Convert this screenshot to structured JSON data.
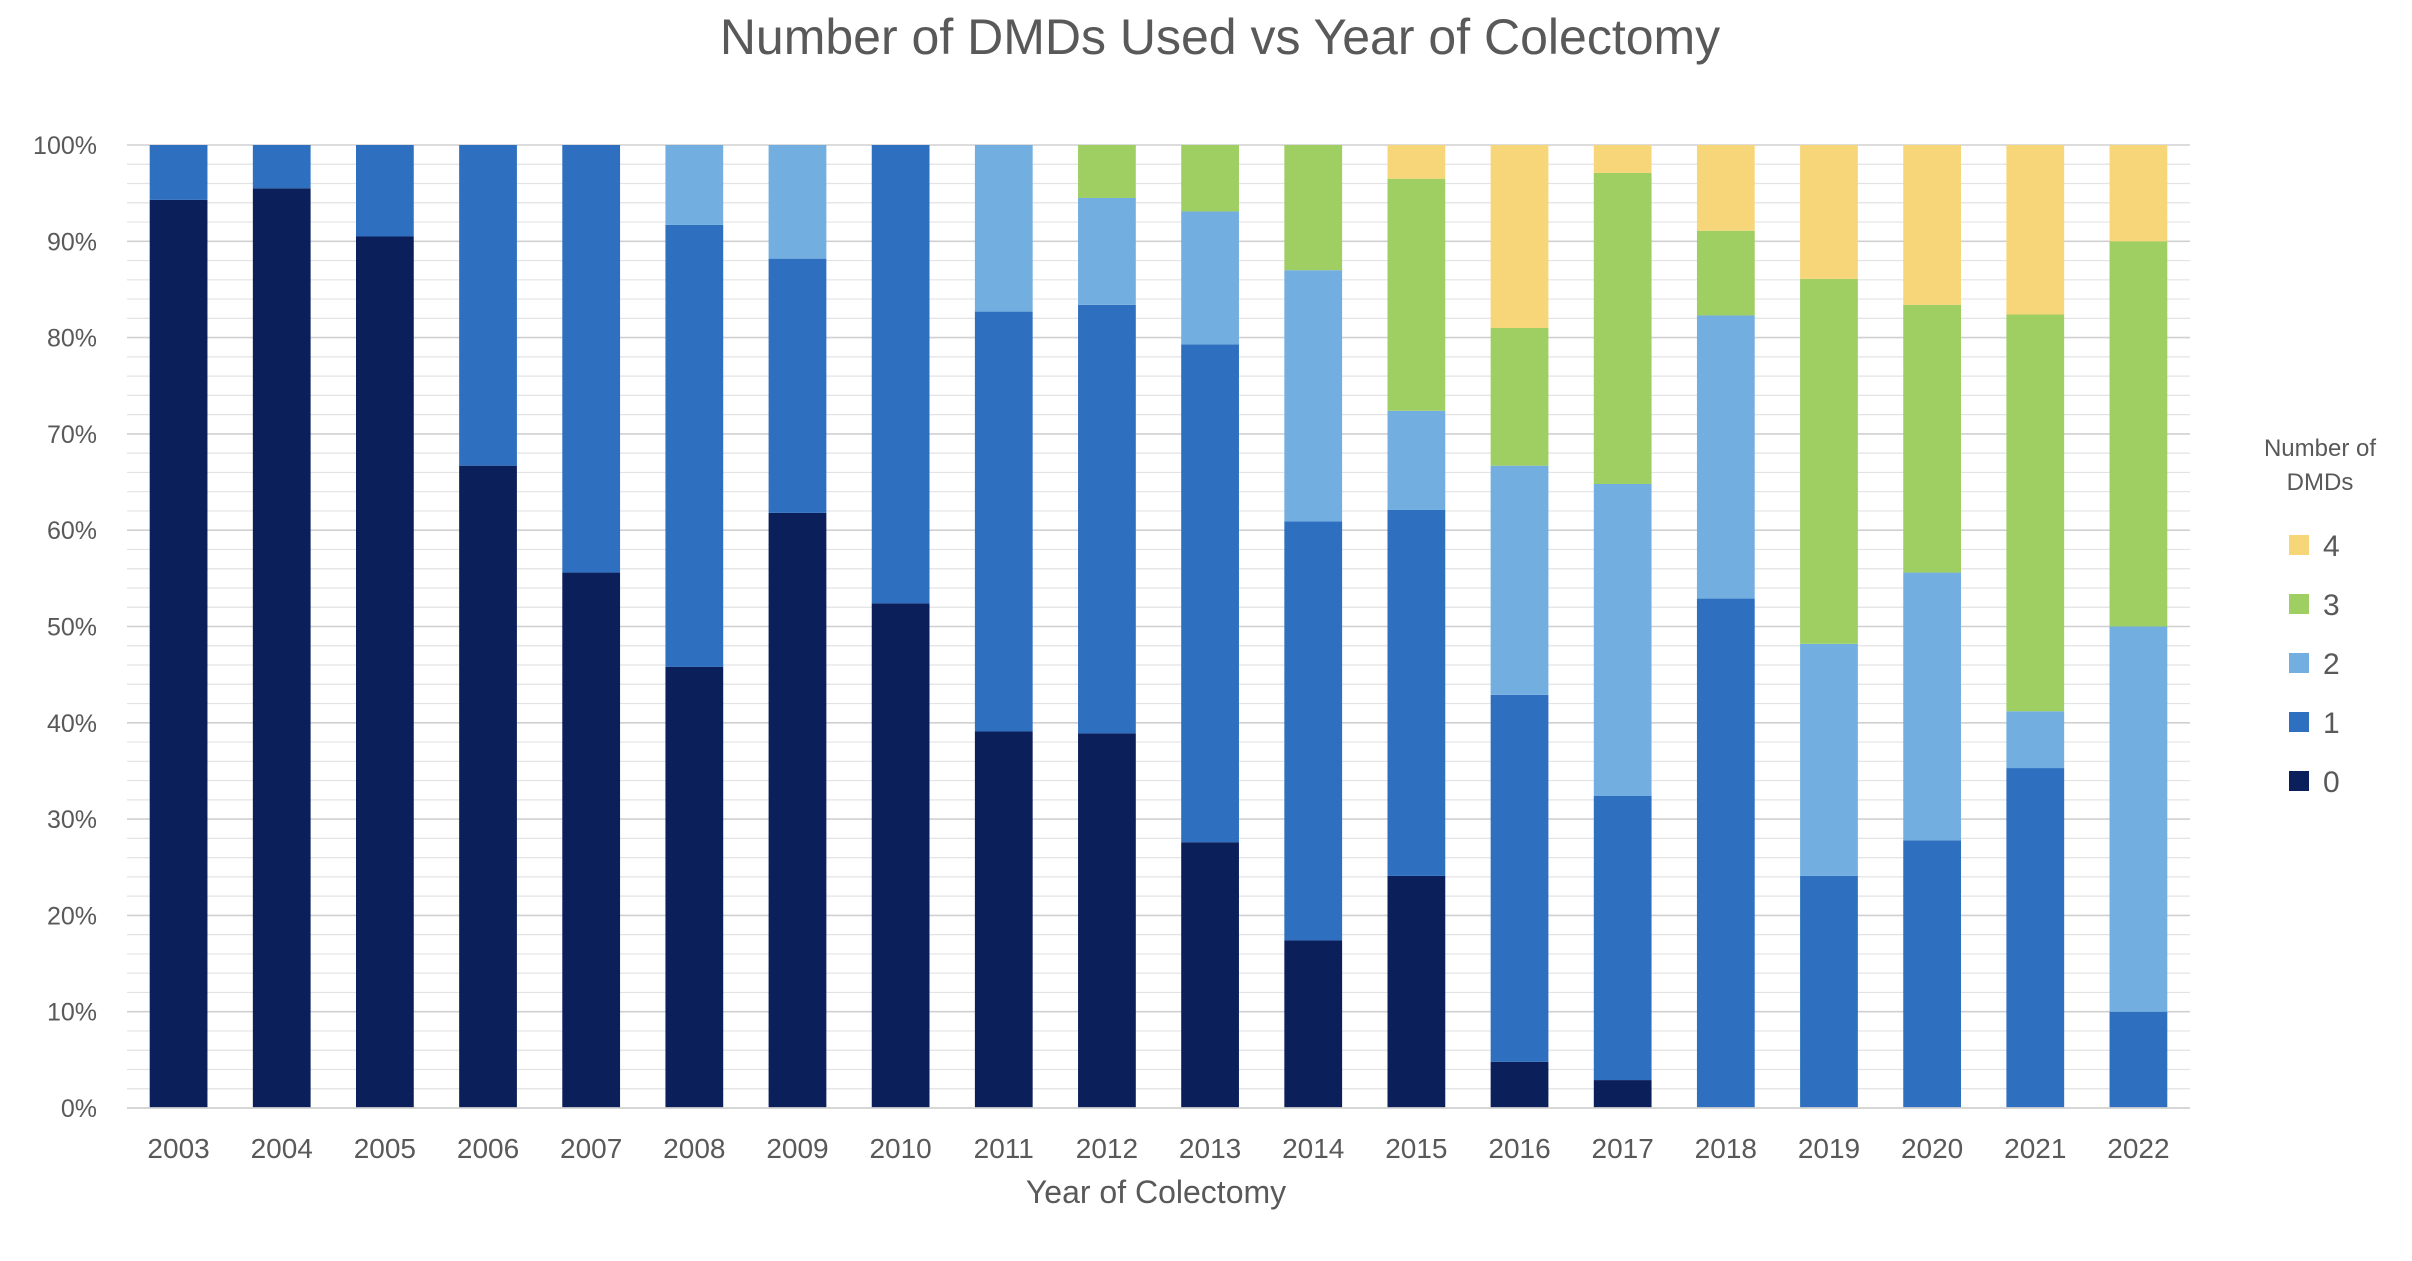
{
  "chart_data": {
    "type": "bar",
    "stacked": true,
    "normalized": true,
    "title": "Number of DMDs Used vs Year of Colectomy",
    "xlabel": "Year of Colectomy",
    "ylabel": "",
    "ylim": [
      0,
      100
    ],
    "y_unit": "%",
    "y_ticks": [
      "0%",
      "10%",
      "20%",
      "30%",
      "40%",
      "50%",
      "60%",
      "70%",
      "80%",
      "90%",
      "100%"
    ],
    "grid": "horizontal",
    "legend": {
      "title": "Number of DMDs",
      "position": "right",
      "order": [
        "4",
        "3",
        "2",
        "1",
        "0"
      ]
    },
    "categories": [
      "2003",
      "2004",
      "2005",
      "2006",
      "2007",
      "2008",
      "2009",
      "2010",
      "2011",
      "2012",
      "2013",
      "2014",
      "2015",
      "2016",
      "2017",
      "2018",
      "2019",
      "2020",
      "2021",
      "2022"
    ],
    "series": [
      {
        "name": "0",
        "color": "#0b1f5b",
        "values": [
          94.3,
          95.5,
          90.5,
          66.7,
          55.6,
          45.8,
          61.8,
          52.4,
          39.1,
          38.9,
          27.6,
          17.4,
          24.1,
          4.8,
          2.9,
          0,
          0,
          0,
          0,
          0
        ]
      },
      {
        "name": "1",
        "color": "#2e6fc0",
        "values": [
          5.7,
          4.5,
          9.5,
          33.3,
          44.4,
          45.9,
          26.4,
          47.6,
          43.6,
          44.5,
          51.7,
          43.5,
          38.0,
          38.1,
          29.5,
          52.9,
          24.1,
          27.8,
          35.3,
          10.0
        ]
      },
      {
        "name": "2",
        "color": "#72aee0",
        "values": [
          0,
          0,
          0,
          0,
          0,
          8.3,
          11.8,
          0,
          17.3,
          11.1,
          13.8,
          26.1,
          10.3,
          23.8,
          32.4,
          29.4,
          24.1,
          27.8,
          5.9,
          40.0
        ]
      },
      {
        "name": "3",
        "color": "#9fce63",
        "values": [
          0,
          0,
          0,
          0,
          0,
          0,
          0,
          0,
          0,
          5.5,
          6.9,
          13.0,
          24.1,
          14.3,
          32.3,
          8.8,
          37.9,
          27.8,
          41.2,
          40.0
        ]
      },
      {
        "name": "4",
        "color": "#f7d67a",
        "values": [
          0,
          0,
          0,
          0,
          0,
          0,
          0,
          0,
          0,
          0,
          0,
          0,
          3.5,
          19.0,
          2.9,
          8.9,
          13.9,
          16.6,
          17.6,
          10.0
        ]
      }
    ]
  }
}
